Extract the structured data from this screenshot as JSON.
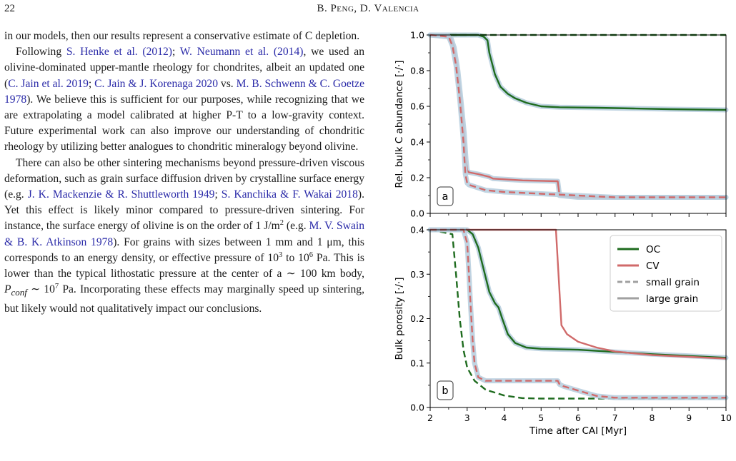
{
  "header": {
    "page_number": "22",
    "running_head": "B. Peng, D. Valencia"
  },
  "body": {
    "p1": "in our models, then our results represent a conservative estimate of C depletion.",
    "p2": {
      "t1": "Following ",
      "c1": "S. Henke et al. (2012)",
      "t2": "; ",
      "c2": "W. Neumann et al. (2014)",
      "t3": ", we used an olivine-dominated upper-mantle rheology for chondrites, albeit an updated one (",
      "c3": "C. Jain et al. 2019",
      "t4": "; ",
      "c4": "C. Jain & J. Korenaga 2020",
      "t5": " vs. ",
      "c5": "M. B. Schwenn & C. Goetze 1978",
      "t6": "). We believe this is sufficient for our purposes, while recognizing that we are extrapolating a model calibrated at higher P-T to a low-gravity context. Future experimental work can also improve our understanding of chondritic rheology by utilizing better analogues to chondritic mineralogy beyond olivine."
    },
    "p3": {
      "t1": "There can also be other sintering mechanisms beyond pressure-driven viscous deformation, such as grain surface diffusion driven by crystalline surface energy (e.g. ",
      "c1": "J. K. Mackenzie & R. Shuttleworth 1949",
      "t2": "; ",
      "c2": "S. Kanchika & F. Wakai 2018",
      "t3": "). Yet this effect is likely minor compared to pressure-driven sintering. For instance, the surface energy of olivine is on the order of 1 J/m",
      "s1": "2",
      "t4": " (e.g. ",
      "c3": "M. V. Swain & B. K. Atkinson 1978",
      "t5": "). For grains with sizes between 1 mm and 1 μm, this corresponds to an energy density, or effective pressure of 10",
      "s2": "3",
      "t6": " to 10",
      "s3": "6",
      "t7": " Pa. This is lower than the typical lithostatic pressure at the center of a ∼ 100 km body, ",
      "m1": "P",
      "m1sub": "conf",
      "t8": " ∼ 10",
      "s4": "7",
      "t9": " Pa. Incorporating these effects may marginally speed up sintering, but likely would not qualitatively impact our conclusions."
    }
  },
  "figure": {
    "colors": {
      "oc": "#1e6b1e",
      "cv": "#d06a6a",
      "gray": "#a0a0a0",
      "halo": "#b9cfdf"
    },
    "legend": [
      "OC",
      "CV",
      "small grain",
      "large grain"
    ],
    "panel_a_label": "a",
    "panel_b_label": "b"
  },
  "chart_data": [
    {
      "type": "line",
      "panel": "a",
      "ylabel": "Rel. bulk C abundance [·/·]",
      "xlim": [
        2,
        10
      ],
      "ylim": [
        0,
        1
      ],
      "yticks": [
        0.0,
        0.2,
        0.4,
        0.6,
        0.8,
        1.0
      ],
      "series": [
        {
          "name": "OC",
          "style": "large",
          "x": [
            2,
            3.3,
            3.45,
            3.55,
            3.6,
            3.75,
            3.9,
            4.1,
            4.3,
            4.6,
            5.0,
            5.5,
            6.5,
            7.5,
            8.5,
            10
          ],
          "y": [
            1.0,
            1.0,
            0.99,
            0.97,
            0.9,
            0.78,
            0.71,
            0.67,
            0.645,
            0.62,
            0.6,
            0.595,
            0.592,
            0.588,
            0.584,
            0.58
          ]
        },
        {
          "name": "OC",
          "style": "small",
          "x": [
            2,
            10
          ],
          "y": [
            1.0,
            1.0
          ]
        },
        {
          "name": "CV",
          "style": "large",
          "x": [
            2,
            2.55,
            2.65,
            2.75,
            2.85,
            2.92,
            2.97,
            3.0,
            3.05,
            3.3,
            3.6,
            3.7,
            4.5,
            5.45,
            5.5,
            6.0,
            10
          ],
          "y": [
            1.0,
            0.99,
            0.93,
            0.8,
            0.6,
            0.45,
            0.3,
            0.24,
            0.23,
            0.22,
            0.205,
            0.195,
            0.185,
            0.18,
            0.1,
            0.09,
            0.09
          ]
        },
        {
          "name": "CV",
          "style": "small",
          "x": [
            2,
            2.5,
            2.6,
            2.7,
            2.8,
            2.9,
            2.95,
            3.0,
            3.05,
            3.2,
            3.5,
            4.0,
            5.0,
            6.0,
            7.0,
            10
          ],
          "y": [
            1.0,
            0.99,
            0.94,
            0.83,
            0.64,
            0.4,
            0.22,
            0.17,
            0.16,
            0.15,
            0.13,
            0.12,
            0.11,
            0.1,
            0.09,
            0.09
          ]
        }
      ]
    },
    {
      "type": "line",
      "panel": "b",
      "xlabel": "Time after CAI [Myr]",
      "ylabel": "Bulk porosity [·/·]",
      "xlim": [
        2,
        10
      ],
      "ylim": [
        0,
        0.4
      ],
      "xticks": [
        2,
        3,
        4,
        5,
        6,
        7,
        8,
        9,
        10
      ],
      "yticks": [
        0.0,
        0.1,
        0.2,
        0.3,
        0.4
      ],
      "legend_position": "top-right",
      "series": [
        {
          "name": "OC",
          "style": "large",
          "x": [
            2,
            3.0,
            3.15,
            3.3,
            3.45,
            3.6,
            3.75,
            3.85,
            3.95,
            4.1,
            4.3,
            4.6,
            5.0,
            6.0,
            7.0,
            8.0,
            10
          ],
          "y": [
            0.4,
            0.4,
            0.39,
            0.36,
            0.31,
            0.26,
            0.235,
            0.225,
            0.2,
            0.165,
            0.145,
            0.135,
            0.132,
            0.13,
            0.125,
            0.12,
            0.112
          ]
        },
        {
          "name": "OC",
          "style": "small",
          "x": [
            2,
            2.6,
            2.7,
            2.8,
            2.9,
            3.0,
            3.2,
            3.5,
            4.0,
            4.5,
            5.0,
            10
          ],
          "y": [
            0.4,
            0.39,
            0.3,
            0.2,
            0.13,
            0.09,
            0.06,
            0.04,
            0.027,
            0.021,
            0.02,
            0.02
          ]
        },
        {
          "name": "CV",
          "style": "large",
          "x": [
            2,
            5.4,
            5.47,
            5.55,
            5.7,
            6.0,
            6.5,
            7.0,
            8.0,
            10
          ],
          "y": [
            0.4,
            0.4,
            0.3,
            0.185,
            0.165,
            0.148,
            0.135,
            0.126,
            0.118,
            0.11
          ]
        },
        {
          "name": "CV",
          "style": "small",
          "x": [
            2,
            2.9,
            3.0,
            3.05,
            3.1,
            3.15,
            3.2,
            3.3,
            3.5,
            4.0,
            4.5,
            5.45,
            5.5,
            5.6,
            6.0,
            6.5,
            7.0,
            10
          ],
          "y": [
            0.4,
            0.4,
            0.37,
            0.3,
            0.22,
            0.15,
            0.1,
            0.068,
            0.06,
            0.06,
            0.06,
            0.06,
            0.052,
            0.048,
            0.038,
            0.026,
            0.022,
            0.022
          ]
        }
      ]
    }
  ]
}
